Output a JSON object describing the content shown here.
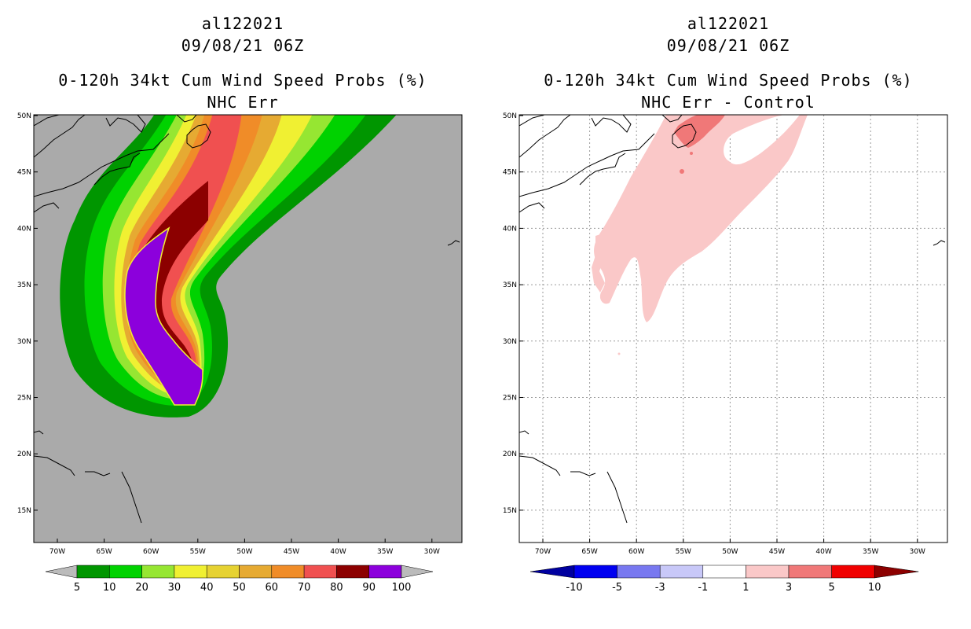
{
  "left": {
    "title": [
      "al122021",
      "09/08/21 06Z",
      "0-120h 34kt Cum Wind Speed Probs (%)",
      "NHC Err"
    ],
    "legend": {
      "colors": [
        "#bbbbbb",
        "#009600",
        "#00d200",
        "#96e632",
        "#f0f032",
        "#e6d232",
        "#e6aa32",
        "#f08c28",
        "#f05050",
        "#8c0000",
        "#8c00dc",
        "#bbbbbb"
      ],
      "labels": [
        "5",
        "10",
        "20",
        "30",
        "40",
        "50",
        "60",
        "70",
        "80",
        "90",
        "100"
      ]
    }
  },
  "right": {
    "title": [
      "al122021",
      "09/08/21 06Z",
      "0-120h 34kt Cum Wind Speed Probs (%)",
      "NHC Err - Control"
    ],
    "legend": {
      "colors": [
        "#0000a0",
        "#0000f0",
        "#7878f0",
        "#c8c8f8",
        "#ffffff",
        "#fac8c8",
        "#f07878",
        "#f00000",
        "#8c0000"
      ],
      "labels": [
        "-10",
        "-5",
        "-3",
        "-1",
        "1",
        "3",
        "5",
        "10"
      ]
    }
  },
  "axes": {
    "lon_labels": [
      "70W",
      "65W",
      "60W",
      "55W",
      "50W",
      "45W",
      "40W",
      "35W",
      "30W"
    ],
    "lat_labels": [
      "50N",
      "45N",
      "40N",
      "35N",
      "30N",
      "25N",
      "20N",
      "15N"
    ]
  },
  "colors": {
    "background": "#aaaaaa",
    "p5": "#009600",
    "p10": "#00d200",
    "p20": "#96e632",
    "p30": "#f0f032",
    "p40": "#e6d232",
    "p50": "#e6aa32",
    "p60": "#f08c28",
    "p70": "#f05050",
    "p80": "#f05050",
    "p90": "#8c0000",
    "p100": "#8c00dc",
    "diff1": "#fac8c8",
    "diff3": "#f07878"
  }
}
